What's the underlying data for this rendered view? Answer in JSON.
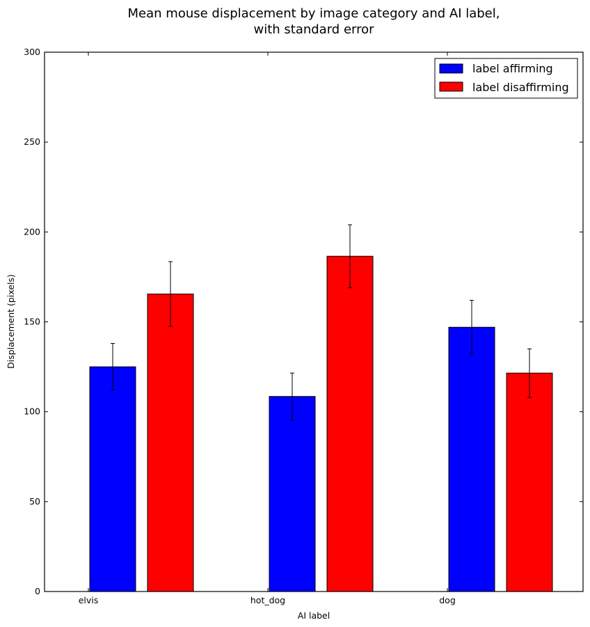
{
  "chart_data": {
    "type": "bar",
    "title_lines": [
      "Mean mouse displacement by image category and AI label,",
      "with standard error"
    ],
    "xlabel": "AI label",
    "ylabel": "Displacement (pixels)",
    "categories": [
      "elvis",
      "hot_dog",
      "dog"
    ],
    "ylim": [
      0,
      300
    ],
    "yticks": [
      0,
      50,
      100,
      150,
      200,
      250,
      300
    ],
    "series": [
      {
        "name": "label affirming",
        "color": "#0000ff",
        "values": [
          125,
          108.5,
          147
        ],
        "errors": [
          13,
          13,
          15
        ]
      },
      {
        "name": "label disaffirming",
        "color": "#ff0000",
        "values": [
          165.5,
          186.5,
          121.5
        ],
        "errors": [
          18,
          17.5,
          13.5
        ]
      }
    ],
    "legend": "top-right",
    "grid": false
  }
}
